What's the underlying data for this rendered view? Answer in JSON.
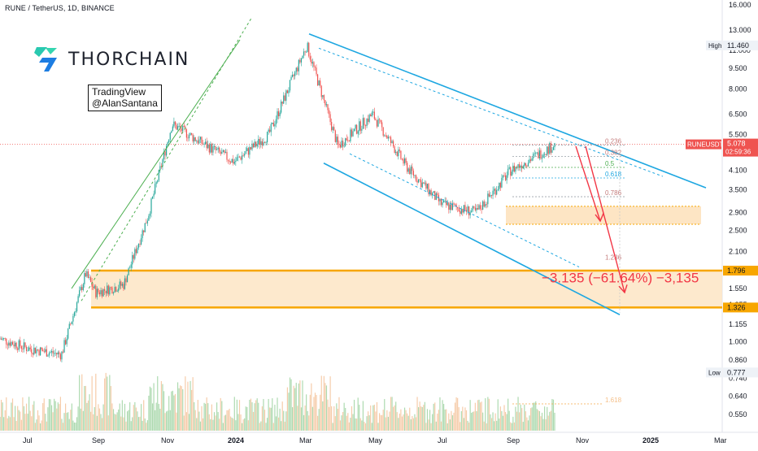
{
  "header": {
    "symbol_line": "RUNE / TetherUS, 1D, BINANCE",
    "brand": "THORCHAIN",
    "credit_line1": "TradingView",
    "credit_line2": "@AlanSantana"
  },
  "colors": {
    "up": "#26a69a",
    "down": "#ef5350",
    "channel": "#1ea7e1",
    "support": "#f7a600",
    "zone": "#fde5c4",
    "trend": "#4caf50",
    "target": "#f23645"
  },
  "annotation": "−3.135 (−61.64%) −3,135",
  "chart_data": {
    "type": "candlestick",
    "x_labels": [
      "Jul",
      "Sep",
      "Nov",
      "2024",
      "Mar",
      "May",
      "Jul",
      "Sep",
      "Nov",
      "2025",
      "Mar"
    ],
    "y_axis": {
      "scale": "log",
      "ticks": [
        0.55,
        0.64,
        0.74,
        0.86,
        1.0,
        1.155,
        1.355,
        1.55,
        2.1,
        2.5,
        2.9,
        3.5,
        4.1,
        5.5,
        6.5,
        8.0,
        9.5,
        11.0,
        13.0,
        16.0
      ],
      "tick_labels": [
        "0.550",
        "0.640",
        "0.740",
        "0.860",
        "1.000",
        "1.155",
        "1.355",
        "1.550",
        "2.100",
        "2.500",
        "2.900",
        "3.500",
        "4.100",
        "5.500",
        "6.500",
        "8.000",
        "9.500",
        "11.000",
        "13.000",
        "16.000"
      ]
    },
    "markers": [
      {
        "label": "High",
        "value": 11.46,
        "text": "11.460"
      },
      {
        "label": "RUNEUSDT",
        "value": 5.078,
        "text": "5.078",
        "countdown": "02:59:36"
      },
      {
        "label": "",
        "value": 1.796,
        "text": "1.796"
      },
      {
        "label": "",
        "value": 1.326,
        "text": "1.326"
      },
      {
        "label": "Low",
        "value": 0.777,
        "text": "0.777"
      }
    ],
    "fib_levels": [
      {
        "label": "0.236",
        "value": 5.05
      },
      {
        "label": "0.382",
        "value": 4.6
      },
      {
        "label": "0.5",
        "value": 4.2
      },
      {
        "label": "0.618",
        "value": 3.85
      },
      {
        "label": "0.786",
        "value": 3.3
      },
      {
        "label": "1.236",
        "value": 2.1
      },
      {
        "label": "1.618",
        "value": 0.6
      }
    ],
    "support_zone": [
      1.326,
      1.796
    ],
    "upper_zone": [
      2.63,
      3.05
    ],
    "price_path": [
      {
        "t": "Jun",
        "p": 1.05
      },
      {
        "t": "Jul",
        "p": 0.95
      },
      {
        "t": "Aug",
        "p": 0.9
      },
      {
        "t": "Aug-end",
        "p": 1.75
      },
      {
        "t": "Sep",
        "p": 1.5
      },
      {
        "t": "Oct",
        "p": 1.6
      },
      {
        "t": "Oct-end",
        "p": 2.8
      },
      {
        "t": "Nov",
        "p": 6.0
      },
      {
        "t": "Dec",
        "p": 5.2
      },
      {
        "t": "Jan",
        "p": 4.4
      },
      {
        "t": "Feb",
        "p": 5.5
      },
      {
        "t": "Mar",
        "p": 11.46
      },
      {
        "t": "Apr",
        "p": 5.0
      },
      {
        "t": "May",
        "p": 6.5
      },
      {
        "t": "Jun",
        "p": 4.2
      },
      {
        "t": "Jul",
        "p": 3.1
      },
      {
        "t": "Aug",
        "p": 2.9
      },
      {
        "t": "Sep",
        "p": 4.1
      },
      {
        "t": "Oct",
        "p": 5.078
      }
    ]
  }
}
